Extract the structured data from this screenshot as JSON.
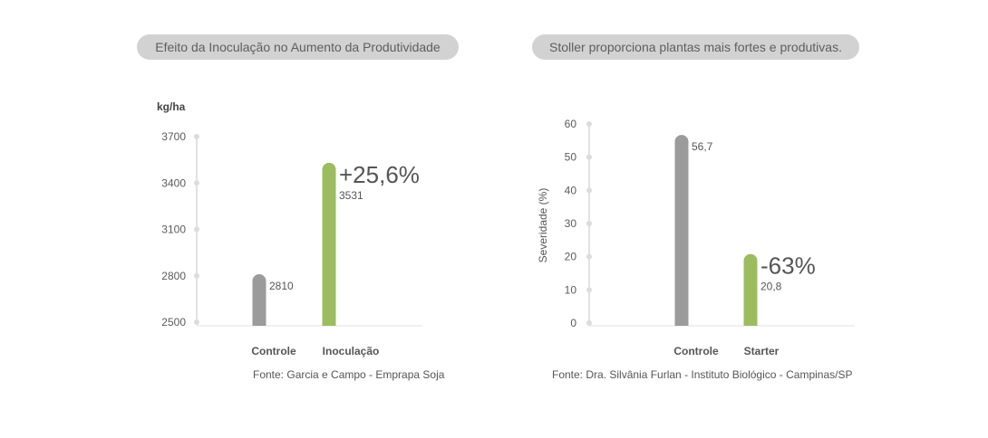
{
  "titles": {
    "left": "Efeito da Inoculação no Aumento da Produtividade",
    "right": "Stoller proporciona plantas mais fortes e produtivas."
  },
  "chart_data": [
    {
      "type": "bar",
      "title": "Efeito da Inoculação no Aumento da Produtividade",
      "ylabel": "kg/ha",
      "ylim": [
        2500,
        3700
      ],
      "yticks": [
        "2500",
        "2800",
        "3100",
        "3400",
        "3700"
      ],
      "categories": [
        "Controle",
        "Inoculação"
      ],
      "values": [
        2810,
        3531
      ],
      "value_labels": [
        "2810",
        "3531"
      ],
      "colors": [
        "#9b9b9b",
        "#9bbd5f"
      ],
      "annotation": {
        "text": "+25,6%",
        "category": "Inoculação"
      },
      "source": "Fonte: Garcia e Campo - Emprapa Soja",
      "grid": false
    },
    {
      "type": "bar",
      "title": "Stoller proporciona plantas mais fortes e produtivas.",
      "ylabel": "Severidade (%)",
      "ylim": [
        0,
        60
      ],
      "yticks": [
        "0",
        "10",
        "20",
        "30",
        "40",
        "50",
        "60"
      ],
      "categories": [
        "Controle",
        "Starter"
      ],
      "values": [
        56.7,
        20.8
      ],
      "value_labels": [
        "56,7",
        "20,8"
      ],
      "colors": [
        "#9b9b9b",
        "#9bbd5f"
      ],
      "annotation": {
        "text": "-63%",
        "category": "Starter"
      },
      "source": "Fonte: Dra. Silvânia Furlan - Instituto Biológico - Campinas/SP",
      "grid": false
    }
  ]
}
